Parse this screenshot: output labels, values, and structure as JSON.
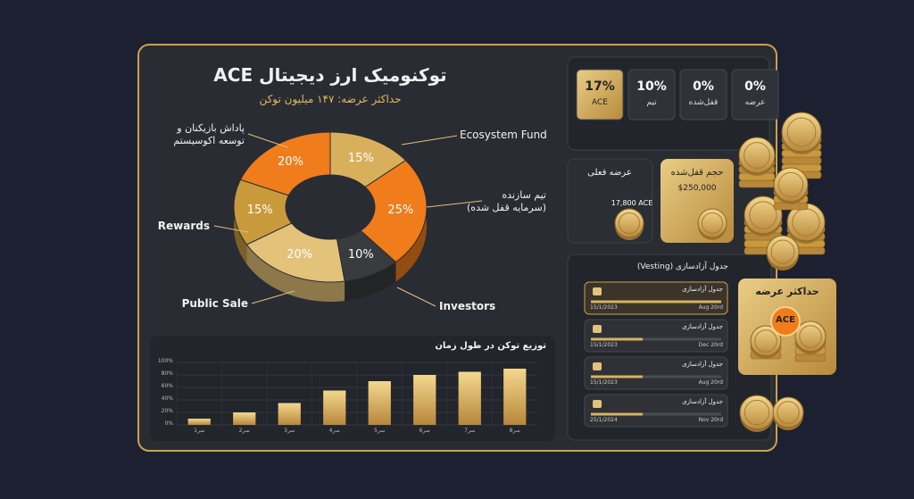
{
  "chart_data": [
    {
      "type": "pie",
      "title": "توکنومیک ارز دیجیتال ACE",
      "subtitle": "حداکثر عرضه: ۱۴۷ میلیون توکن",
      "categories": [
        "Ecosystem Fund",
        "تیم سازنده\n(سرمایه قفل شده)",
        "Investors",
        "Public Sale",
        "Rewards",
        "پاداش بازیکنان و\nتوسعه اکوسیستم"
      ],
      "values": [
        15,
        25,
        10,
        20,
        15,
        20
      ],
      "value_labels": [
        "15%",
        "25%",
        "10%",
        "20%",
        "15%",
        "20%"
      ],
      "colors": [
        "#d8b05c",
        "#f07c1c",
        "#3a3b3e",
        "#e3c27a",
        "#c99a3c",
        "#f07c1c"
      ]
    },
    {
      "type": "bar",
      "title": "توزیع توکن در طول زمان",
      "categories": [
        "سر1",
        "سر2",
        "سر3",
        "سر4",
        "سر5",
        "سر6",
        "سر7",
        "سر8"
      ],
      "values": [
        10,
        20,
        35,
        55,
        70,
        80,
        85,
        90
      ],
      "color": "#d9b25e",
      "ylim": [
        0,
        100
      ],
      "yticks": [
        {
          "value": 0,
          "label": "0%"
        },
        {
          "value": 20,
          "label": "20%"
        },
        {
          "value": 40,
          "label": "40%"
        },
        {
          "value": 60,
          "label": "60%"
        },
        {
          "value": 80,
          "label": "80%"
        },
        {
          "value": 100,
          "label": "100%"
        }
      ],
      "grid": true
    }
  ],
  "stats": [
    {
      "value": "17%",
      "label": "ACE"
    },
    {
      "value": "10%",
      "label": "تیم"
    },
    {
      "value": "0%",
      "label": "قفل‌شده"
    },
    {
      "value": "0%",
      "label": "عرضه"
    }
  ],
  "supply_card": {
    "title": "عرضه فعلی",
    "value": "17,800 ACE"
  },
  "locked_card": {
    "title": "حجم قفل‌شده",
    "value": "$250,000"
  },
  "vesting": {
    "title": "جدول آزادسازی (Vesting)",
    "items": [
      {
        "title": "جدول آزادسازی",
        "start": "15/1/2023",
        "end": "Aug 20rd"
      },
      {
        "title": "جدول آزادسازی",
        "start": "15/1/2023",
        "end": "Dec 20rd"
      },
      {
        "title": "جدول آزادسازی",
        "start": "15/1/2023",
        "end": "Aug 20rd"
      },
      {
        "title": "جدول آزادسازی",
        "start": "25/1/2024",
        "end": "Nov 20rd"
      }
    ]
  },
  "max_card": {
    "title": "حداکثر عرضه",
    "token": "ACE"
  }
}
